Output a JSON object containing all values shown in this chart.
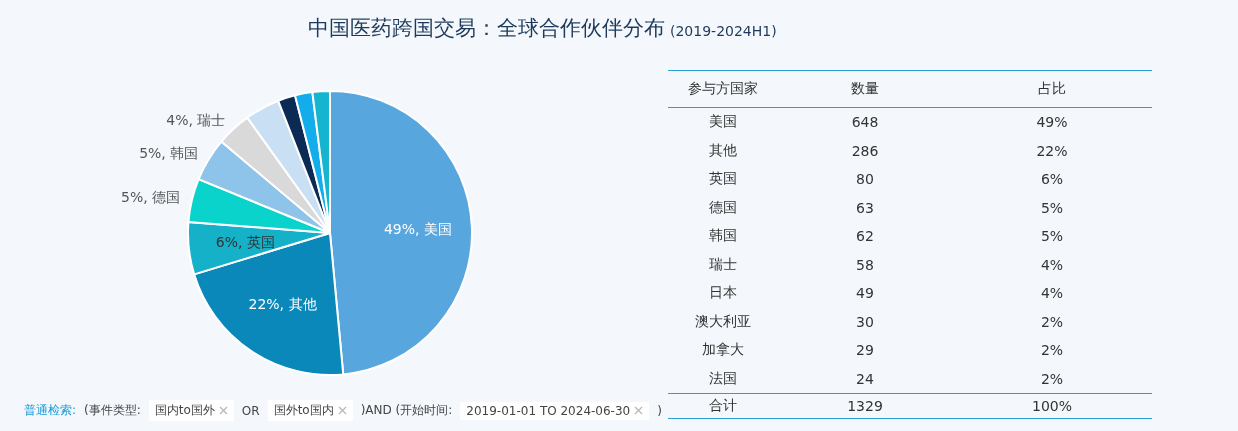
{
  "chart_data": [
    {
      "type": "pie",
      "title": "中国医药跨国交易：全球合作伙伴分布",
      "categories": [
        "美国",
        "其他",
        "英国",
        "德国",
        "韩国",
        "瑞士",
        null,
        null,
        null,
        null
      ],
      "values": [
        49,
        22,
        6,
        5,
        5,
        4,
        4,
        2,
        2,
        2
      ],
      "value_labels": [
        "49%",
        "22%",
        "6%",
        "5%",
        "5%",
        "4%",
        null,
        null,
        null,
        null
      ],
      "colors": [
        "#58a6de",
        "#0a88b9",
        "#14b1c9",
        "#0ad3cc",
        "#8ec3ea",
        "#d9d9d9",
        "#c9dff3",
        "#0b2b54",
        "#12adea",
        "#15b5cf"
      ],
      "annotations": [
        "普通检索:",
        "(事件类型:",
        "国内to国外",
        "OR",
        "国外to国内",
        ")AND (开始时间:",
        "2019-01-01 TO 2024-06-30",
        ")"
      ]
    },
    {
      "type": "other",
      "subtitle": "(2019-2024H1)",
      "xlabel": "参与方国家",
      "categories": [
        "美国",
        "其他",
        "英国",
        "德国",
        "韩国",
        "瑞士",
        "日本",
        "澳大利亚",
        "加拿大",
        "法国"
      ],
      "series": [
        {
          "name": "数量",
          "values": [
            648,
            286,
            80,
            63,
            62,
            58,
            49,
            30,
            29,
            24
          ]
        },
        {
          "name": "占比",
          "values": [
            49,
            22,
            6,
            5,
            5,
            4,
            4,
            2,
            2,
            2
          ],
          "value_labels": [
            "49%",
            "22%",
            "6%",
            "5%",
            "5%",
            "4%",
            "4%",
            "2%",
            "2%",
            "2%"
          ]
        }
      ],
      "data_labels": true,
      "annotations": [
        "合计"
      ],
      "totals": [
        "1329",
        "100%"
      ]
    }
  ]
}
